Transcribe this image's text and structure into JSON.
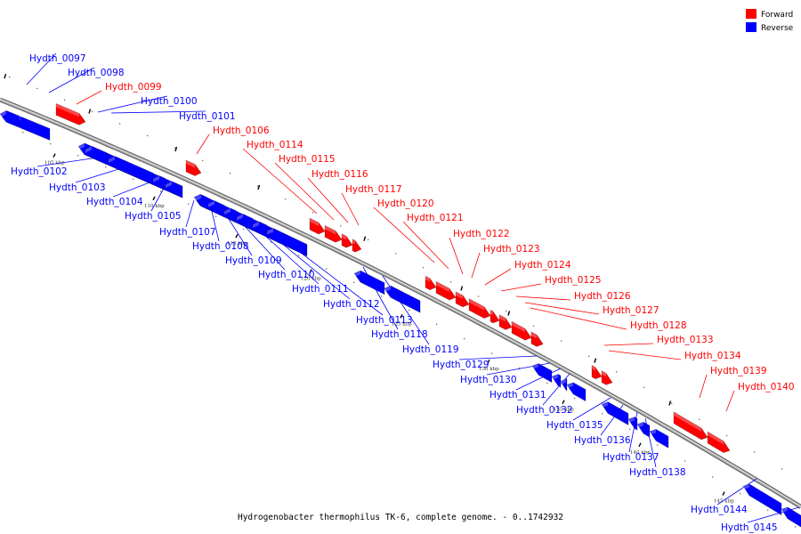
{
  "title": "Hydrogenobacter thermophilus TK-6, complete genome. - 0..1742932",
  "colors": {
    "forward": "#ff0000",
    "reverse": "#0000ff",
    "backbone": "#8c8c8c"
  },
  "legend": [
    {
      "key": "forward",
      "label": "Forward"
    },
    {
      "key": "reverse",
      "label": "Reverse"
    }
  ],
  "ticks": [
    "105 kbp",
    "110 kbp",
    "115 kbp",
    "120 kbp",
    "125 kbp",
    "130 kbp",
    "135 kbp",
    "140 kbp",
    "145 kbp"
  ],
  "genes": [
    {
      "id": "Hydth_0097",
      "strand": "reverse"
    },
    {
      "id": "Hydth_0098",
      "strand": "reverse"
    },
    {
      "id": "Hydth_0099",
      "strand": "forward"
    },
    {
      "id": "Hydth_0100",
      "strand": "reverse"
    },
    {
      "id": "Hydth_0101",
      "strand": "reverse"
    },
    {
      "id": "Hydth_0102",
      "strand": "reverse"
    },
    {
      "id": "Hydth_0103",
      "strand": "reverse"
    },
    {
      "id": "Hydth_0104",
      "strand": "reverse"
    },
    {
      "id": "Hydth_0105",
      "strand": "reverse"
    },
    {
      "id": "Hydth_0106",
      "strand": "forward"
    },
    {
      "id": "Hydth_0107",
      "strand": "reverse"
    },
    {
      "id": "Hydth_0108",
      "strand": "reverse"
    },
    {
      "id": "Hydth_0109",
      "strand": "reverse"
    },
    {
      "id": "Hydth_0110",
      "strand": "reverse"
    },
    {
      "id": "Hydth_0111",
      "strand": "reverse"
    },
    {
      "id": "Hydth_0112",
      "strand": "reverse"
    },
    {
      "id": "Hydth_0113",
      "strand": "reverse"
    },
    {
      "id": "Hydth_0114",
      "strand": "forward"
    },
    {
      "id": "Hydth_0115",
      "strand": "forward"
    },
    {
      "id": "Hydth_0116",
      "strand": "forward"
    },
    {
      "id": "Hydth_0117",
      "strand": "forward"
    },
    {
      "id": "Hydth_0118",
      "strand": "reverse"
    },
    {
      "id": "Hydth_0119",
      "strand": "reverse"
    },
    {
      "id": "Hydth_0120",
      "strand": "forward"
    },
    {
      "id": "Hydth_0121",
      "strand": "forward"
    },
    {
      "id": "Hydth_0122",
      "strand": "forward"
    },
    {
      "id": "Hydth_0123",
      "strand": "forward"
    },
    {
      "id": "Hydth_0124",
      "strand": "forward"
    },
    {
      "id": "Hydth_0125",
      "strand": "forward"
    },
    {
      "id": "Hydth_0126",
      "strand": "forward"
    },
    {
      "id": "Hydth_0127",
      "strand": "forward"
    },
    {
      "id": "Hydth_0128",
      "strand": "forward"
    },
    {
      "id": "Hydth_0129",
      "strand": "reverse"
    },
    {
      "id": "Hydth_0130",
      "strand": "reverse"
    },
    {
      "id": "Hydth_0131",
      "strand": "reverse"
    },
    {
      "id": "Hydth_0132",
      "strand": "reverse"
    },
    {
      "id": "Hydth_0133",
      "strand": "forward"
    },
    {
      "id": "Hydth_0134",
      "strand": "forward"
    },
    {
      "id": "Hydth_0135",
      "strand": "reverse"
    },
    {
      "id": "Hydth_0136",
      "strand": "reverse"
    },
    {
      "id": "Hydth_0137",
      "strand": "reverse"
    },
    {
      "id": "Hydth_0138",
      "strand": "reverse"
    },
    {
      "id": "Hydth_0139",
      "strand": "forward"
    },
    {
      "id": "Hydth_0140",
      "strand": "forward"
    },
    {
      "id": "Hydth_0144",
      "strand": "reverse"
    },
    {
      "id": "Hydth_0145",
      "strand": "reverse"
    }
  ]
}
